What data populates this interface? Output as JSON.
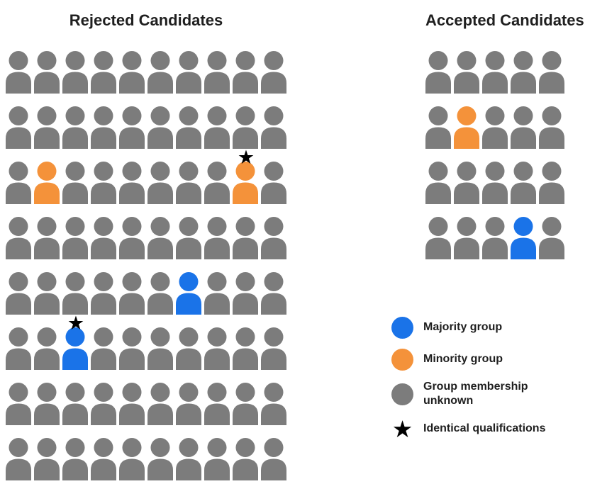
{
  "colors": {
    "gray": "#7C7C7C",
    "orange": "#F4923A",
    "blue": "#1A73E8",
    "star": "#000000",
    "text": "#1F1F1F"
  },
  "star_glyph": "★",
  "rejected": {
    "title": "Rejected Candidates",
    "grid": {
      "rows": 8,
      "cols": 10,
      "default_color": "gray",
      "specials": [
        {
          "row": 2,
          "col": 1,
          "color": "orange",
          "star": false
        },
        {
          "row": 2,
          "col": 8,
          "color": "orange",
          "star": true
        },
        {
          "row": 4,
          "col": 6,
          "color": "blue",
          "star": false
        },
        {
          "row": 5,
          "col": 2,
          "color": "blue",
          "star": true
        }
      ]
    }
  },
  "accepted": {
    "title": "Accepted Candidates",
    "grid": {
      "rows": 4,
      "cols": 5,
      "default_color": "gray",
      "specials": [
        {
          "row": 1,
          "col": 1,
          "color": "orange",
          "star": false
        },
        {
          "row": 3,
          "col": 3,
          "color": "blue",
          "star": false
        }
      ]
    }
  },
  "legend": {
    "items": [
      {
        "type": "circle",
        "color": "blue",
        "label": "Majority group"
      },
      {
        "type": "circle",
        "color": "orange",
        "label": "Minority group"
      },
      {
        "type": "circle",
        "color": "gray",
        "label": "Group membership\nunknown"
      },
      {
        "type": "star",
        "color": "star",
        "label": "Identical qualifications"
      }
    ]
  }
}
